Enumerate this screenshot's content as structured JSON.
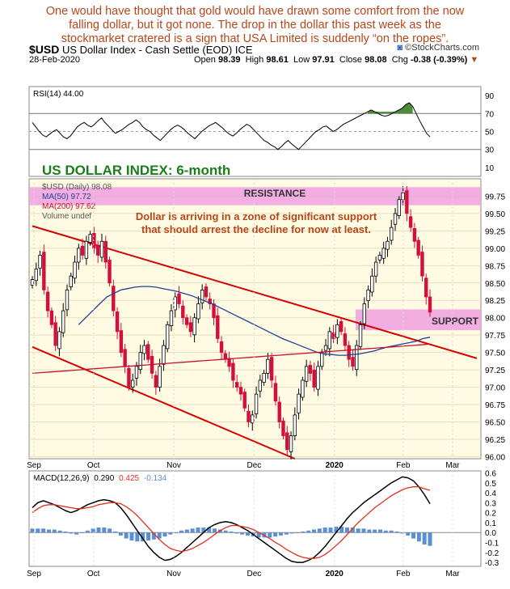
{
  "headline": [
    "One would have thought that gold would have drawn some comfort from the now",
    "falling dollar, but it got none. The drop in the dollar this past week as the",
    "stockmarket  cratered is a sign that USA Limited is suddenly “on the ropes”."
  ],
  "header": {
    "symbol": "$USD",
    "name": "US Dollar Index - Cash Settle (EOD)",
    "exchange": "ICE",
    "logo": "©StockCharts.com",
    "date": "28-Feb-2020",
    "open_label": "Open",
    "open": "98.39",
    "high_label": "High",
    "high": "98.61",
    "low_label": "Low",
    "low": "97.91",
    "close_label": "Close",
    "close": "98.08",
    "chg_label": "Chg",
    "chg": "-0.38 (-0.39%)"
  },
  "colors": {
    "headline": "#b5471b",
    "up_candle": "#000000",
    "down_candle": "#d40f3c",
    "ma50": "#1f3f9a",
    "ma200": "#c8102e",
    "trendline": "#d40000",
    "zone": "#f0a0e0",
    "title_green": "#1a7f1a",
    "annotation": "#b5471b",
    "macd_line": "#000000",
    "signal_line": "#e0301e",
    "histogram": "#5b8fd0"
  },
  "chart_data": [
    {
      "type": "line",
      "panel": "rsi",
      "legend": "RSI(14) 44.00",
      "ylim": [
        0,
        100
      ],
      "yticks": [
        "90",
        "70",
        "50",
        "30",
        "10"
      ],
      "reference_levels": [
        70,
        30
      ],
      "series": [
        {
          "name": "RSI(14)",
          "values": [
            60,
            55,
            50,
            46,
            44,
            47,
            50,
            52,
            48,
            44,
            42,
            45,
            50,
            55,
            58,
            60,
            57,
            55,
            58,
            62,
            65,
            60,
            56,
            52,
            48,
            50,
            52,
            55,
            58,
            60,
            63,
            60,
            55,
            52,
            50,
            46,
            43,
            40,
            44,
            48,
            52,
            55,
            57,
            55,
            52,
            48,
            45,
            42,
            46,
            50,
            53,
            56,
            58,
            60,
            57,
            54,
            50,
            47,
            45,
            48,
            52,
            55,
            58,
            56,
            52,
            48,
            44,
            40,
            38,
            35,
            33,
            30,
            33,
            37,
            40,
            36,
            33,
            30,
            34,
            38,
            42,
            46,
            50,
            52,
            55,
            56,
            53,
            50,
            52,
            55,
            58,
            60,
            62,
            64,
            66,
            68,
            70,
            72,
            74,
            72,
            70,
            68,
            67,
            68,
            70,
            72,
            74,
            76,
            80,
            82,
            78,
            70,
            62,
            55,
            48,
            44
          ]
        }
      ]
    },
    {
      "type": "candlestick",
      "panel": "price",
      "panel_title": "US DOLLAR INDEX: 6-month",
      "legend": [
        "$USD (Daily) 98.08",
        "MA(50) 97.72",
        "MA(200) 97.62",
        "Volume undef"
      ],
      "ylim": [
        95.97,
        100.0
      ],
      "yticks": [
        "99.75",
        "99.50",
        "99.25",
        "99.00",
        "98.75",
        "98.50",
        "98.25",
        "98.00",
        "97.75",
        "97.50",
        "97.25",
        "97.00",
        "96.75",
        "96.50",
        "96.25",
        "96.00"
      ],
      "x_labels": [
        "Sep",
        "Oct",
        "Nov",
        "Dec",
        "2020",
        "Feb",
        "Mar"
      ],
      "close": [
        98.55,
        98.7,
        98.9,
        98.4,
        98.1,
        97.9,
        97.6,
        97.8,
        98.1,
        98.4,
        98.6,
        98.8,
        99.0,
        98.9,
        99.1,
        99.2,
        99.0,
        98.9,
        99.1,
        98.8,
        98.5,
        98.1,
        97.8,
        97.5,
        97.3,
        97.0,
        97.1,
        97.3,
        97.5,
        97.6,
        97.4,
        97.2,
        97.0,
        97.3,
        97.6,
        97.9,
        98.1,
        98.3,
        98.2,
        98.0,
        97.9,
        97.8,
        98.0,
        98.2,
        98.4,
        98.3,
        98.2,
        98.0,
        97.7,
        97.5,
        97.4,
        97.3,
        97.1,
        97.0,
        96.9,
        96.7,
        96.5,
        96.6,
        96.9,
        97.1,
        97.2,
        97.4,
        97.1,
        96.8,
        96.5,
        96.3,
        96.1,
        96.3,
        96.6,
        96.9,
        97.1,
        97.3,
        97.2,
        97.0,
        97.3,
        97.5,
        97.6,
        97.8,
        97.7,
        97.9,
        97.8,
        97.6,
        97.4,
        97.3,
        97.6,
        97.9,
        98.2,
        98.4,
        98.6,
        98.8,
        98.9,
        99.0,
        99.1,
        99.3,
        99.5,
        99.7,
        99.8,
        99.5,
        99.3,
        99.1,
        98.9,
        98.6,
        98.3,
        98.08
      ],
      "series": [
        {
          "name": "MA(50)",
          "values": [
            97.9,
            98.0,
            98.1,
            98.2,
            98.3,
            98.35,
            98.4,
            98.42,
            98.44,
            98.45,
            98.45,
            98.44,
            98.42,
            98.4,
            98.38,
            98.35,
            98.32,
            98.28,
            98.24,
            98.2,
            98.15,
            98.1,
            98.05,
            98.0,
            97.95,
            97.9,
            97.85,
            97.8,
            97.75,
            97.7,
            97.66,
            97.62,
            97.58,
            97.54,
            97.5,
            97.48,
            97.47,
            97.46,
            97.46,
            97.47,
            97.48,
            97.5,
            97.52,
            97.55,
            97.58,
            97.6,
            97.62,
            97.64,
            97.66,
            97.7,
            97.72
          ]
        },
        {
          "name": "MA(200)",
          "values": [
            97.2,
            97.21,
            97.22,
            97.23,
            97.24,
            97.25,
            97.26,
            97.27,
            97.28,
            97.29,
            97.3,
            97.31,
            97.32,
            97.33,
            97.34,
            97.35,
            97.36,
            97.37,
            97.38,
            97.39,
            97.4,
            97.41,
            97.42,
            97.43,
            97.44,
            97.45,
            97.46,
            97.47,
            97.48,
            97.49,
            97.5,
            97.51,
            97.52,
            97.53,
            97.54,
            97.55,
            97.56,
            97.57,
            97.58,
            97.59,
            97.6,
            97.61,
            97.62
          ]
        }
      ],
      "annotations": [
        "RESISTANCE",
        "SUPPORT",
        "Dollar is arriving in a zone of significant support",
        "that should arrest the decline for now at least."
      ],
      "resistance_zone": [
        99.62,
        99.88
      ],
      "support_zone": [
        97.82,
        98.12
      ],
      "trendlines": [
        {
          "name": "upper",
          "from": [
            0,
            99.32
          ],
          "to": [
            104,
            97.6
          ]
        },
        {
          "name": "lower",
          "from": [
            0,
            97.58
          ],
          "to": [
            68,
            95.97
          ]
        }
      ]
    },
    {
      "type": "line",
      "panel": "macd",
      "legend_prefix": "MACD(12,26,9)",
      "legend_values": [
        "0.290",
        "0.425",
        "-0.134"
      ],
      "ylim": [
        -0.34,
        0.62
      ],
      "yticks": [
        "0.6",
        "0.5",
        "0.4",
        "0.3",
        "0.2",
        "0.1",
        "0.0",
        "-0.1",
        "-0.2",
        "-0.3"
      ],
      "x_labels": [
        "Sep",
        "Oct",
        "Nov",
        "Dec",
        "2020",
        "Feb",
        "Mar"
      ],
      "series": [
        {
          "name": "MACD",
          "values": [
            0.25,
            0.3,
            0.32,
            0.3,
            0.28,
            0.25,
            0.22,
            0.2,
            0.22,
            0.25,
            0.28,
            0.3,
            0.32,
            0.33,
            0.32,
            0.3,
            0.25,
            0.18,
            0.1,
            0.02,
            -0.06,
            -0.14,
            -0.2,
            -0.25,
            -0.28,
            -0.27,
            -0.24,
            -0.2,
            -0.15,
            -0.1,
            -0.05,
            0.0,
            0.05,
            0.08,
            0.1,
            0.11,
            0.1,
            0.08,
            0.05,
            0.02,
            -0.02,
            -0.06,
            -0.1,
            -0.14,
            -0.18,
            -0.22,
            -0.26,
            -0.29,
            -0.3,
            -0.3,
            -0.28,
            -0.25,
            -0.2,
            -0.14,
            -0.07,
            0.0,
            0.07,
            0.14,
            0.2,
            0.25,
            0.3,
            0.34,
            0.38,
            0.42,
            0.46,
            0.5,
            0.53,
            0.56,
            0.55,
            0.52,
            0.46,
            0.38,
            0.29
          ]
        },
        {
          "name": "Signal",
          "values": [
            0.2,
            0.24,
            0.27,
            0.28,
            0.28,
            0.27,
            0.26,
            0.25,
            0.24,
            0.24,
            0.25,
            0.26,
            0.28,
            0.29,
            0.3,
            0.3,
            0.29,
            0.26,
            0.22,
            0.17,
            0.11,
            0.05,
            -0.01,
            -0.07,
            -0.12,
            -0.16,
            -0.18,
            -0.19,
            -0.18,
            -0.16,
            -0.13,
            -0.1,
            -0.06,
            -0.02,
            0.02,
            0.05,
            0.07,
            0.07,
            0.06,
            0.05,
            0.03,
            0.0,
            -0.03,
            -0.06,
            -0.1,
            -0.13,
            -0.17,
            -0.2,
            -0.23,
            -0.25,
            -0.26,
            -0.26,
            -0.25,
            -0.22,
            -0.18,
            -0.13,
            -0.08,
            -0.02,
            0.04,
            0.1,
            0.15,
            0.2,
            0.25,
            0.29,
            0.33,
            0.37,
            0.4,
            0.43,
            0.45,
            0.46,
            0.46,
            0.44,
            0.425
          ]
        },
        {
          "name": "Histogram",
          "values": [
            0.04,
            0.04,
            0.04,
            0.03,
            0.03,
            0.02,
            0.01,
            -0.01,
            -0.02,
            0.0,
            0.02,
            0.04,
            0.05,
            0.05,
            0.04,
            0.01,
            -0.03,
            -0.06,
            -0.08,
            -0.09,
            -0.09,
            -0.08,
            -0.07,
            -0.06,
            -0.04,
            -0.02,
            0.0,
            0.02,
            0.03,
            0.04,
            0.05,
            0.05,
            0.05,
            0.04,
            0.03,
            0.02,
            0.01,
            -0.01,
            -0.02,
            -0.03,
            -0.04,
            -0.05,
            -0.05,
            -0.05,
            -0.04,
            -0.03,
            -0.02,
            -0.01,
            0.0,
            0.01,
            0.02,
            0.03,
            0.04,
            0.05,
            0.05,
            0.06,
            0.06,
            0.05,
            0.05,
            0.04,
            0.04,
            0.03,
            0.03,
            0.03,
            0.02,
            0.02,
            0.01,
            -0.01,
            -0.03,
            -0.06,
            -0.09,
            -0.12,
            -0.134
          ]
        }
      ]
    }
  ]
}
